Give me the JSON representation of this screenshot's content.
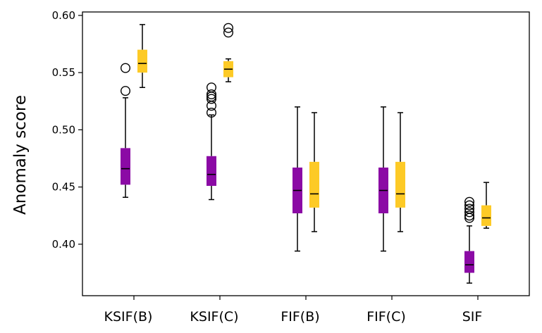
{
  "chart_data": {
    "type": "boxplot",
    "title": "",
    "xlabel": "",
    "ylabel": "Anomaly score",
    "ylim": [
      0.355,
      0.603
    ],
    "yticks": [
      0.4,
      0.45,
      0.5,
      0.55,
      0.6
    ],
    "ytick_labels": [
      "0.40",
      "0.45",
      "0.50",
      "0.55",
      "0.60"
    ],
    "categories": [
      "KSIF(B)",
      "KSIF(C)",
      "FIF(B)",
      "FIF(C)",
      "SIF"
    ],
    "grid": false,
    "legend": "none",
    "series": [
      {
        "color": "#8b0aa5",
        "boxes": [
          {
            "whislo": 0.441,
            "q1": 0.452,
            "med": 0.466,
            "q3": 0.484,
            "whishi": 0.528,
            "fliers": [
              0.554,
              0.534
            ]
          },
          {
            "whislo": 0.439,
            "q1": 0.451,
            "med": 0.461,
            "q3": 0.477,
            "whishi": 0.513,
            "fliers": [
              0.537,
              0.531,
              0.529,
              0.527,
              0.521,
              0.515
            ]
          },
          {
            "whislo": 0.394,
            "q1": 0.427,
            "med": 0.447,
            "q3": 0.467,
            "whishi": 0.52,
            "fliers": []
          },
          {
            "whislo": 0.394,
            "q1": 0.427,
            "med": 0.447,
            "q3": 0.467,
            "whishi": 0.52,
            "fliers": []
          },
          {
            "whislo": 0.366,
            "q1": 0.375,
            "med": 0.382,
            "q3": 0.394,
            "whishi": 0.416,
            "fliers": [
              0.437,
              0.434,
              0.431,
              0.428,
              0.425,
              0.423
            ]
          }
        ]
      },
      {
        "color": "#fdca26",
        "boxes": [
          {
            "whislo": 0.537,
            "q1": 0.55,
            "med": 0.558,
            "q3": 0.57,
            "whishi": 0.592,
            "fliers": []
          },
          {
            "whislo": 0.542,
            "q1": 0.546,
            "med": 0.553,
            "q3": 0.56,
            "whishi": 0.562,
            "fliers": [
              0.589,
              0.585
            ]
          },
          {
            "whislo": 0.411,
            "q1": 0.432,
            "med": 0.444,
            "q3": 0.472,
            "whishi": 0.515,
            "fliers": []
          },
          {
            "whislo": 0.411,
            "q1": 0.432,
            "med": 0.444,
            "q3": 0.472,
            "whishi": 0.515,
            "fliers": []
          },
          {
            "whislo": 0.414,
            "q1": 0.416,
            "med": 0.423,
            "q3": 0.434,
            "whishi": 0.454,
            "fliers": []
          }
        ]
      }
    ]
  }
}
